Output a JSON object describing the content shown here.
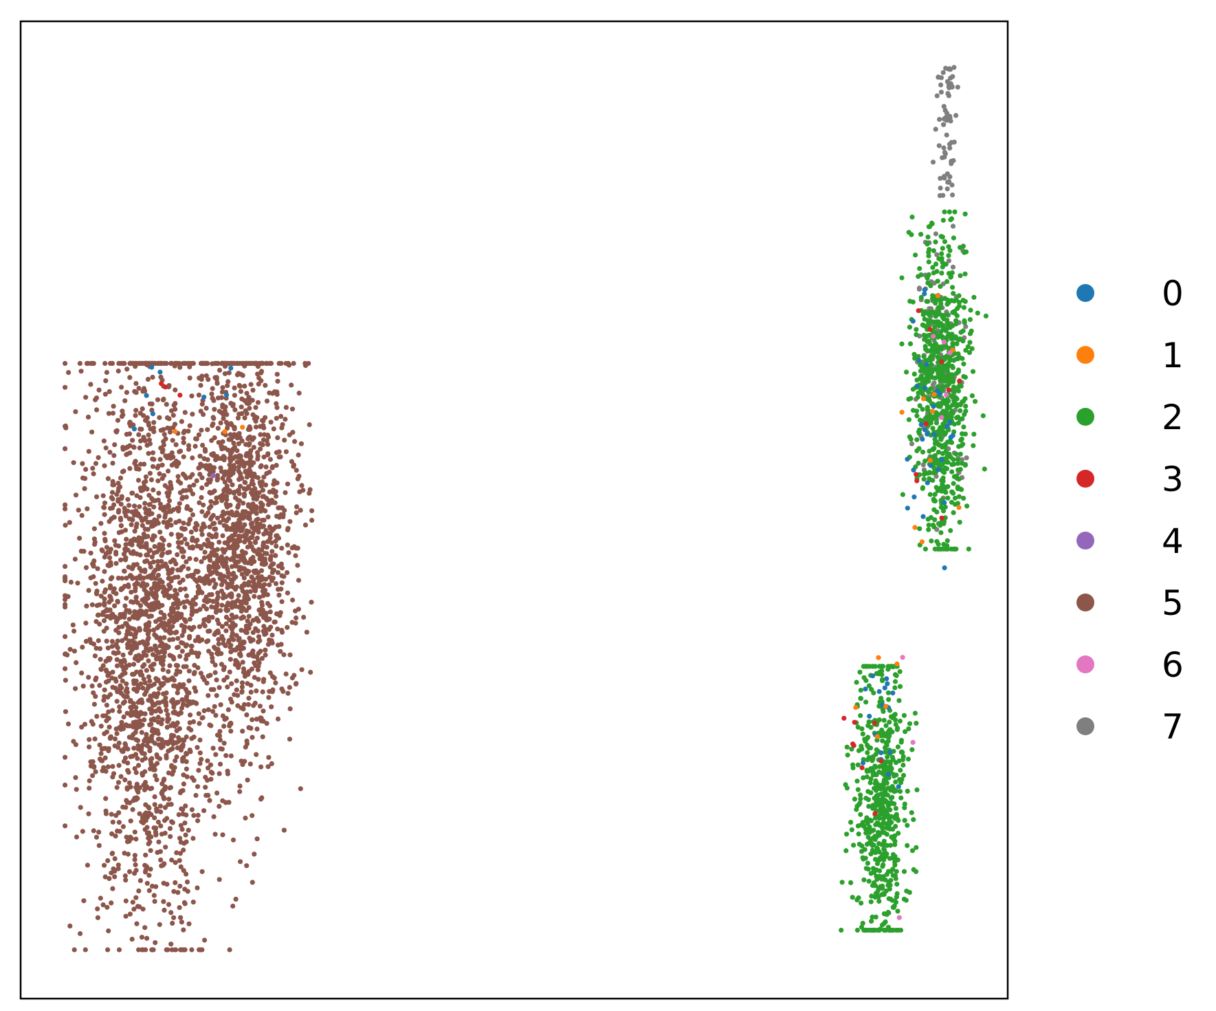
{
  "chart_data": {
    "type": "scatter",
    "title": "",
    "xlabel": "",
    "ylabel": "",
    "xlim": [
      0,
      100
    ],
    "ylim": [
      0,
      100
    ],
    "ticks": false,
    "grid": false,
    "legend_placement": "right",
    "series": [
      {
        "name": "0",
        "color": "#1f77b4",
        "count": 55
      },
      {
        "name": "1",
        "color": "#ff7f0e",
        "count": 18
      },
      {
        "name": "2",
        "color": "#2ca02c",
        "count": 1300
      },
      {
        "name": "3",
        "color": "#d62728",
        "count": 20
      },
      {
        "name": "4",
        "color": "#9467bd",
        "count": 3
      },
      {
        "name": "5",
        "color": "#8c564b",
        "count": 3300
      },
      {
        "name": "6",
        "color": "#e377c2",
        "count": 8
      },
      {
        "name": "7",
        "color": "#7f7f7f",
        "count": 210
      }
    ]
  }
}
